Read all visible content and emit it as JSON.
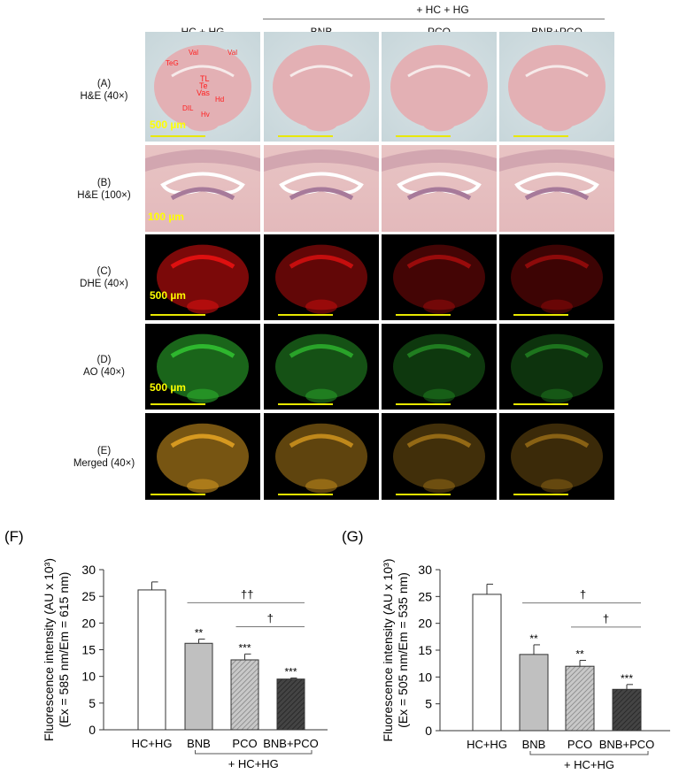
{
  "header": {
    "group_label": "+ HC + HG",
    "columns": [
      "HC + HG",
      "BNB",
      "PCO",
      "BNB+PCO"
    ]
  },
  "rows": [
    {
      "label1": "(A)",
      "label2": "H&E (40×)"
    },
    {
      "label1": "(B)",
      "label2": "H&E (100×)"
    },
    {
      "label1": "(C)",
      "label2": "DHE (40×)"
    },
    {
      "label1": "(D)",
      "label2": "AO (40×)"
    },
    {
      "label1": "(E)",
      "label2": "Merged (40×)"
    }
  ],
  "annotations": [
    "Val",
    "Val",
    "TeG",
    "TL",
    "Te",
    "Vas",
    "Hd",
    "DIL",
    "Hv"
  ],
  "scale_bars": {
    "a": "500 µm",
    "b": "100 µm",
    "c": "500 µm",
    "d": "500 µm"
  },
  "colors": {
    "he": "#e3b0b4",
    "dhe": "#e01010",
    "ao": "#2fb82f",
    "merged": "#d89a20",
    "scale": "#ffff00"
  },
  "chart_data": [
    {
      "type": "bar",
      "panel": "(F)",
      "title": "",
      "ylabel_line1": "Fluorescence intensity (AU x 10³)",
      "ylabel_line2": "(Ex = 585 nm/Em = 615 nm)",
      "ylim": [
        0,
        30
      ],
      "yticks": [
        0,
        5,
        10,
        15,
        20,
        25,
        30
      ],
      "categories": [
        "HC+HG",
        "BNB",
        "PCO",
        "BNB+PCO"
      ],
      "values": [
        26.2,
        16.2,
        13.1,
        9.5
      ],
      "errors": [
        1.5,
        0.8,
        1.1,
        0.2
      ],
      "significance": [
        "",
        "**",
        "***",
        "***"
      ],
      "group_label": "+ HC+HG",
      "comparisons": [
        {
          "from": "BNB",
          "to": "BNB+PCO",
          "label": "††"
        },
        {
          "from": "PCO",
          "to": "BNB+PCO",
          "label": "†"
        }
      ]
    },
    {
      "type": "bar",
      "panel": "(G)",
      "title": "",
      "ylabel_line1": "Fluorescence intensity (AU x 10³)",
      "ylabel_line2": "(Ex = 505 nm/Em = 535 nm)",
      "ylim": [
        0,
        30
      ],
      "yticks": [
        0,
        5,
        10,
        15,
        20,
        25,
        30
      ],
      "categories": [
        "HC+HG",
        "BNB",
        "PCO",
        "BNB+PCO"
      ],
      "values": [
        25.4,
        14.2,
        12.0,
        7.7
      ],
      "errors": [
        1.9,
        1.8,
        1.1,
        0.9
      ],
      "significance": [
        "",
        "**",
        "**",
        "***"
      ],
      "group_label": "+ HC+HG",
      "comparisons": [
        {
          "from": "BNB",
          "to": "BNB+PCO",
          "label": "†"
        },
        {
          "from": "PCO",
          "to": "BNB+PCO",
          "label": "†"
        }
      ]
    }
  ]
}
